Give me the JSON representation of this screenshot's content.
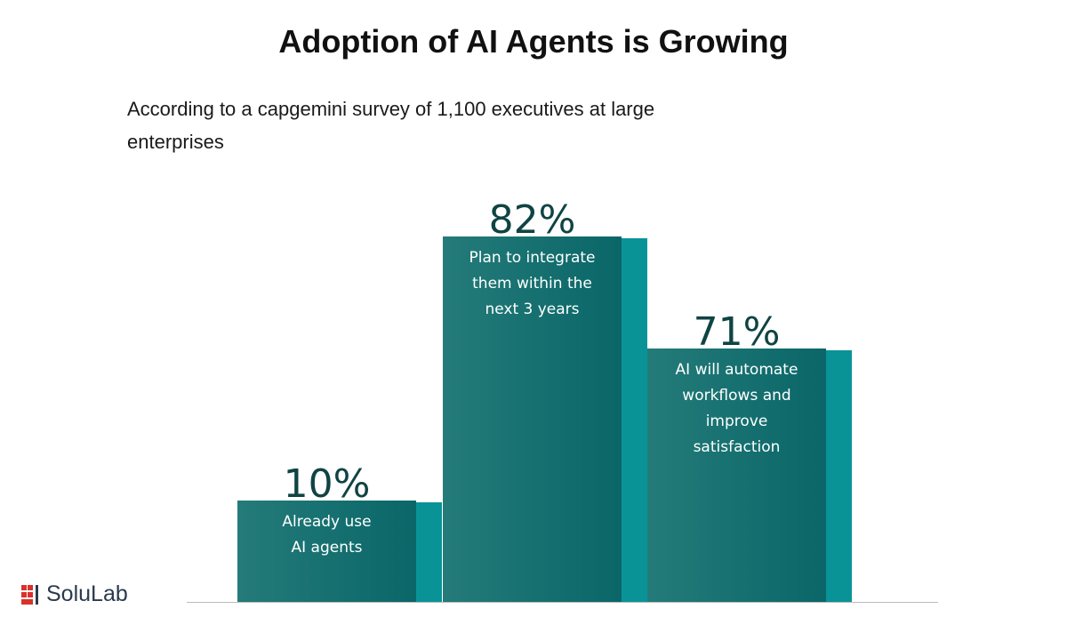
{
  "chart_data": {
    "type": "bar",
    "title": "Adoption of AI Agents is Growing",
    "subtitle": "According to a capgemini survey of 1,100 executives at large enterprises",
    "categories": [
      "Already use AI agents",
      "Plan to integrate them within the next 3 years",
      "AI will automate workflows and improve satisfaction"
    ],
    "values": [
      10,
      82,
      71
    ],
    "value_labels": [
      "10%",
      "82%",
      "71%"
    ],
    "colors": {
      "front": "#1a7372",
      "side": "#0a9397",
      "value_text": "#0f4443"
    },
    "grid": false
  },
  "logo": {
    "text": "SoluLab",
    "mark": "SOLULAB"
  }
}
